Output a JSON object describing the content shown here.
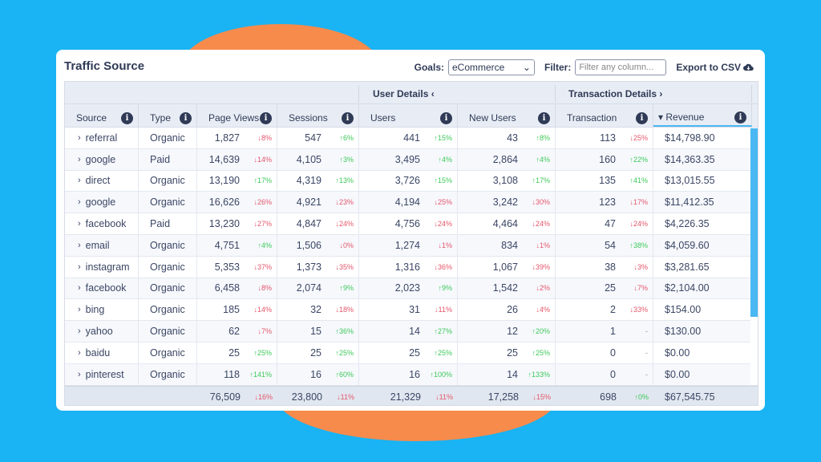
{
  "title": "Traffic Source",
  "toolbar": {
    "goals_label": "Goals:",
    "goals_value": "eCommerce",
    "filter_label": "Filter:",
    "filter_placeholder": "Filter any column...",
    "export_label": "Export to CSV"
  },
  "groups": {
    "user": "User Details ‹",
    "transaction": "Transaction Details ›"
  },
  "columns": [
    "Source",
    "Type",
    "Page Views",
    "Sessions",
    "Users",
    "New Users",
    "Transaction",
    "▾ Revenue"
  ],
  "rows": [
    [
      "referral",
      "Organic",
      [
        "1,827",
        "↓8%",
        "down"
      ],
      [
        "547",
        "↑6%",
        "up"
      ],
      [
        "441",
        "↑15%",
        "up"
      ],
      [
        "43",
        "↑8%",
        "up"
      ],
      [
        "113",
        "↓25%",
        "down"
      ],
      "$14,798.90"
    ],
    [
      "google",
      "Paid",
      [
        "14,639",
        "↓14%",
        "down"
      ],
      [
        "4,105",
        "↑3%",
        "up"
      ],
      [
        "3,495",
        "↑4%",
        "up"
      ],
      [
        "2,864",
        "↑4%",
        "up"
      ],
      [
        "160",
        "↑22%",
        "up"
      ],
      "$14,363.35"
    ],
    [
      "direct",
      "Organic",
      [
        "13,190",
        "↑17%",
        "up"
      ],
      [
        "4,319",
        "↑13%",
        "up"
      ],
      [
        "3,726",
        "↑15%",
        "up"
      ],
      [
        "3,108",
        "↑17%",
        "up"
      ],
      [
        "135",
        "↑41%",
        "up"
      ],
      "$13,015.55"
    ],
    [
      "google",
      "Organic",
      [
        "16,626",
        "↓26%",
        "down"
      ],
      [
        "4,921",
        "↓23%",
        "down"
      ],
      [
        "4,194",
        "↓25%",
        "down"
      ],
      [
        "3,242",
        "↓30%",
        "down"
      ],
      [
        "123",
        "↓17%",
        "down"
      ],
      "$11,412.35"
    ],
    [
      "facebook",
      "Paid",
      [
        "13,230",
        "↓27%",
        "down"
      ],
      [
        "4,847",
        "↓24%",
        "down"
      ],
      [
        "4,756",
        "↓24%",
        "down"
      ],
      [
        "4,464",
        "↓24%",
        "down"
      ],
      [
        "47",
        "↓24%",
        "down"
      ],
      "$4,226.35"
    ],
    [
      "email",
      "Organic",
      [
        "4,751",
        "↑4%",
        "up"
      ],
      [
        "1,506",
        "↓0%",
        "down"
      ],
      [
        "1,274",
        "↓1%",
        "down"
      ],
      [
        "834",
        "↓1%",
        "down"
      ],
      [
        "54",
        "↑38%",
        "up"
      ],
      "$4,059.60"
    ],
    [
      "instagram",
      "Organic",
      [
        "5,353",
        "↓37%",
        "down"
      ],
      [
        "1,373",
        "↓35%",
        "down"
      ],
      [
        "1,316",
        "↓36%",
        "down"
      ],
      [
        "1,067",
        "↓39%",
        "down"
      ],
      [
        "38",
        "↓3%",
        "down"
      ],
      "$3,281.65"
    ],
    [
      "facebook",
      "Organic",
      [
        "6,458",
        "↓8%",
        "down"
      ],
      [
        "2,074",
        "↑9%",
        "up"
      ],
      [
        "2,023",
        "↑9%",
        "up"
      ],
      [
        "1,542",
        "↓2%",
        "down"
      ],
      [
        "25",
        "↓7%",
        "down"
      ],
      "$2,104.00"
    ],
    [
      "bing",
      "Organic",
      [
        "185",
        "↓14%",
        "down"
      ],
      [
        "32",
        "↓18%",
        "down"
      ],
      [
        "31",
        "↓11%",
        "down"
      ],
      [
        "26",
        "↓4%",
        "down"
      ],
      [
        "2",
        "↓33%",
        "down"
      ],
      "$154.00"
    ],
    [
      "yahoo",
      "Organic",
      [
        "62",
        "↓7%",
        "down"
      ],
      [
        "15",
        "↑36%",
        "up"
      ],
      [
        "14",
        "↑27%",
        "up"
      ],
      [
        "12",
        "↑20%",
        "up"
      ],
      [
        "1",
        "-",
        "flat"
      ],
      "$130.00"
    ],
    [
      "baidu",
      "Organic",
      [
        "25",
        "↑25%",
        "up"
      ],
      [
        "25",
        "↑25%",
        "up"
      ],
      [
        "25",
        "↑25%",
        "up"
      ],
      [
        "25",
        "↑25%",
        "up"
      ],
      [
        "0",
        "-",
        "flat"
      ],
      "$0.00"
    ],
    [
      "pinterest",
      "Organic",
      [
        "118",
        "↑141%",
        "up"
      ],
      [
        "16",
        "↑60%",
        "up"
      ],
      [
        "16",
        "↑100%",
        "up"
      ],
      [
        "14",
        "↑133%",
        "up"
      ],
      [
        "0",
        "-",
        "flat"
      ],
      "$0.00"
    ]
  ],
  "totals": [
    [
      "76,509",
      "↓16%",
      "down"
    ],
    [
      "23,800",
      "↓11%",
      "down"
    ],
    [
      "21,329",
      "↓11%",
      "down"
    ],
    [
      "17,258",
      "↓15%",
      "down"
    ],
    [
      "698",
      "↑0%",
      "up"
    ],
    "$67,545.75"
  ],
  "colors": {
    "background": "#1ab3f3",
    "accent_blob": "#f68b4c",
    "up": "#3ec95a",
    "down": "#e5566a"
  },
  "icons": {
    "info": "info-icon",
    "expand": "chevron-right-icon",
    "export": "cloud-download-icon",
    "select": "chevron-down-icon"
  }
}
